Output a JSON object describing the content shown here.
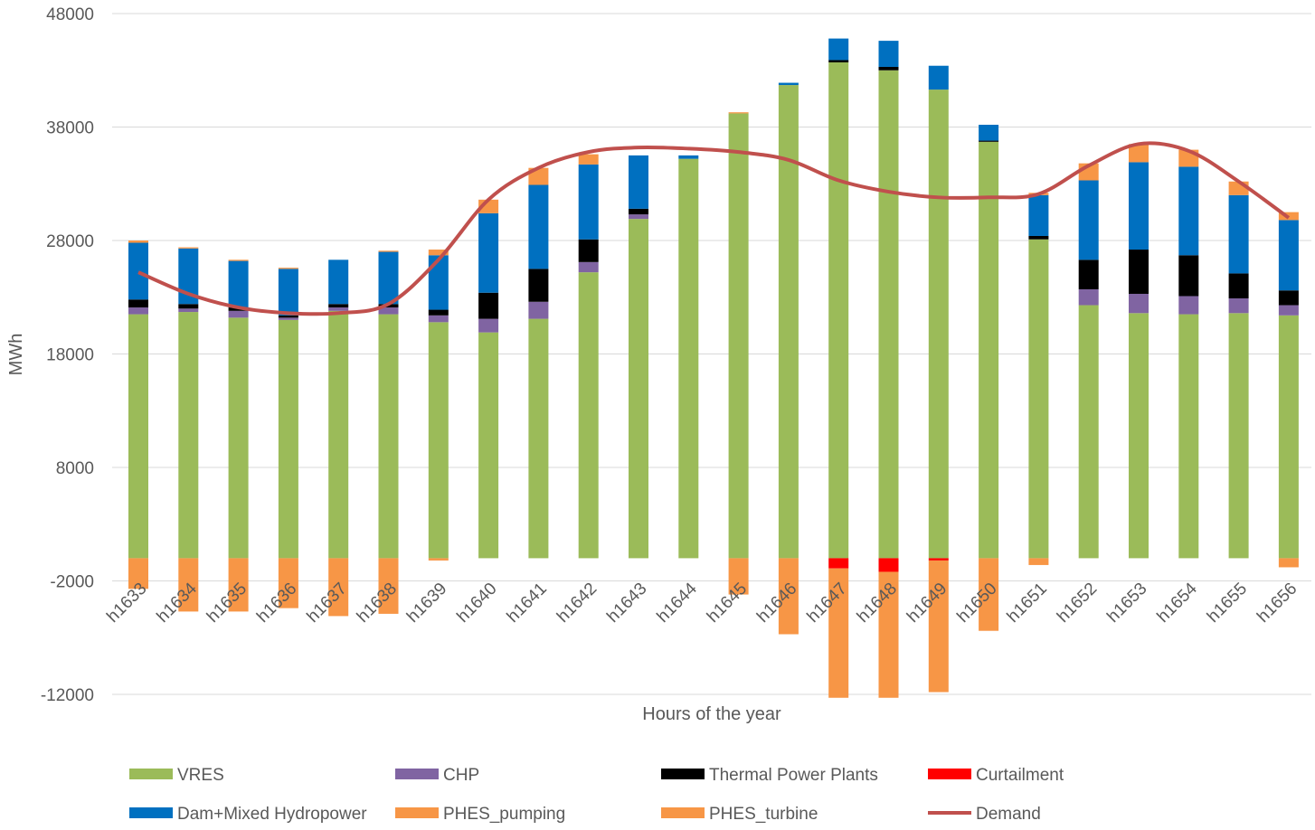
{
  "chart_data": {
    "type": "bar",
    "stacked": true,
    "title": "",
    "xlabel": "Hours of the year",
    "ylabel": "MWh",
    "ylim": [
      -12000,
      48000
    ],
    "yticks": [
      48000,
      38000,
      28000,
      18000,
      8000,
      -2000,
      -12000
    ],
    "grid": true,
    "legend_position": "bottom",
    "categories": [
      "h1633",
      "h1634",
      "h1635",
      "h1636",
      "h1637",
      "h1638",
      "h1639",
      "h1640",
      "h1641",
      "h1642",
      "h1643",
      "h1644",
      "h1645",
      "h1646",
      "h1647",
      "h1648",
      "h1649",
      "h1650",
      "h1651",
      "h1652",
      "h1653",
      "h1654",
      "h1655",
      "h1656"
    ],
    "series": [
      {
        "name": "VRES",
        "type": "bar",
        "color": "#9bbb59",
        "values": [
          21500,
          21700,
          21200,
          21000,
          21800,
          21500,
          20800,
          19900,
          21100,
          25200,
          29900,
          35200,
          39200,
          41700,
          43700,
          43000,
          41300,
          36700,
          28100,
          22300,
          21600,
          21500,
          21600,
          21400
        ]
      },
      {
        "name": "CHP",
        "type": "bar",
        "color": "#8064a2",
        "values": [
          600,
          300,
          600,
          200,
          300,
          600,
          600,
          1200,
          1500,
          900,
          400,
          0,
          0,
          0,
          0,
          0,
          0,
          0,
          0,
          1400,
          1700,
          1600,
          1300,
          900
        ]
      },
      {
        "name": "Thermal Power Plants",
        "type": "bar",
        "color": "#000000",
        "values": [
          700,
          400,
          300,
          200,
          300,
          300,
          500,
          2300,
          2900,
          2000,
          500,
          0,
          0,
          0,
          200,
          300,
          0,
          100,
          300,
          2600,
          3900,
          3600,
          2200,
          1300
        ]
      },
      {
        "name": "Curtailment",
        "type": "bar",
        "color": "#ff0000",
        "values": [
          0,
          0,
          0,
          0,
          0,
          0,
          0,
          0,
          0,
          0,
          0,
          0,
          0,
          0,
          -900,
          -1200,
          -200,
          0,
          0,
          0,
          0,
          0,
          0,
          0
        ]
      },
      {
        "name": "Dam+Mixed Hydropower",
        "type": "bar",
        "color": "#0070c0",
        "values": [
          5000,
          4900,
          4100,
          4100,
          3900,
          4600,
          4800,
          7000,
          7400,
          6600,
          4700,
          300,
          0,
          200,
          1900,
          2300,
          2100,
          1400,
          3600,
          7000,
          7700,
          7800,
          6900,
          6200
        ]
      },
      {
        "name": "PHES_pumping",
        "type": "bar",
        "color": "#f79646",
        "values": [
          -2700,
          -4700,
          -4700,
          -4400,
          -5100,
          -4900,
          -200,
          0,
          0,
          0,
          0,
          0,
          -3200,
          -6700,
          -11400,
          -11100,
          -11600,
          -6400,
          -600,
          0,
          0,
          0,
          0,
          -800
        ]
      },
      {
        "name": "PHES_turbine",
        "type": "bar",
        "color": "#f79646",
        "values": [
          200,
          100,
          100,
          100,
          0,
          100,
          500,
          1200,
          1500,
          900,
          0,
          0,
          100,
          0,
          0,
          0,
          0,
          0,
          200,
          1500,
          1600,
          1500,
          1200,
          700
        ]
      },
      {
        "name": "Demand",
        "type": "line",
        "color": "#c0504d",
        "values": [
          25200,
          23300,
          22100,
          21600,
          21600,
          22400,
          26300,
          31600,
          34400,
          35800,
          36200,
          36100,
          35800,
          35100,
          33300,
          32300,
          31800,
          31800,
          32100,
          34600,
          36500,
          35900,
          33200,
          30000
        ]
      }
    ]
  }
}
